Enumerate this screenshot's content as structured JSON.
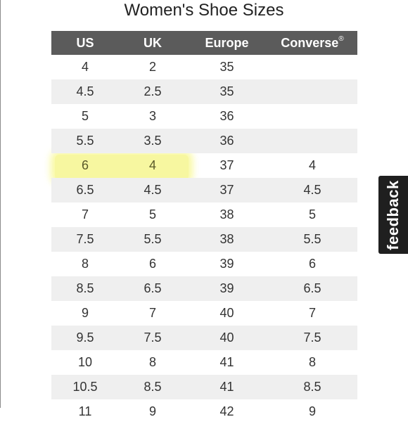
{
  "title": "Women's Shoe Sizes",
  "table": {
    "headers": {
      "us": "US",
      "uk": "UK",
      "europe": "Europe",
      "converse": "Converse",
      "converse_mark": "®"
    },
    "rows": [
      [
        "4",
        "2",
        "35",
        ""
      ],
      [
        "4.5",
        "2.5",
        "35",
        ""
      ],
      [
        "5",
        "3",
        "36",
        ""
      ],
      [
        "5.5",
        "3.5",
        "36",
        ""
      ],
      [
        "6",
        "4",
        "37",
        "4"
      ],
      [
        "6.5",
        "4.5",
        "37",
        "4.5"
      ],
      [
        "7",
        "5",
        "38",
        "5"
      ],
      [
        "7.5",
        "5.5",
        "38",
        "5.5"
      ],
      [
        "8",
        "6",
        "39",
        "6"
      ],
      [
        "8.5",
        "6.5",
        "39",
        "6.5"
      ],
      [
        "9",
        "7",
        "40",
        "7"
      ],
      [
        "9.5",
        "7.5",
        "40",
        "7.5"
      ],
      [
        "10",
        "8",
        "41",
        "8"
      ],
      [
        "10.5",
        "8.5",
        "41",
        "8.5"
      ],
      [
        "11",
        "9",
        "42",
        "9"
      ]
    ],
    "highlighted_row": "6",
    "colors": {
      "header_bg": "#5b5b5b",
      "stripe_bg": "#efefef",
      "highlight": "#f7f7a0"
    }
  },
  "feedback": {
    "label": "feedback"
  }
}
